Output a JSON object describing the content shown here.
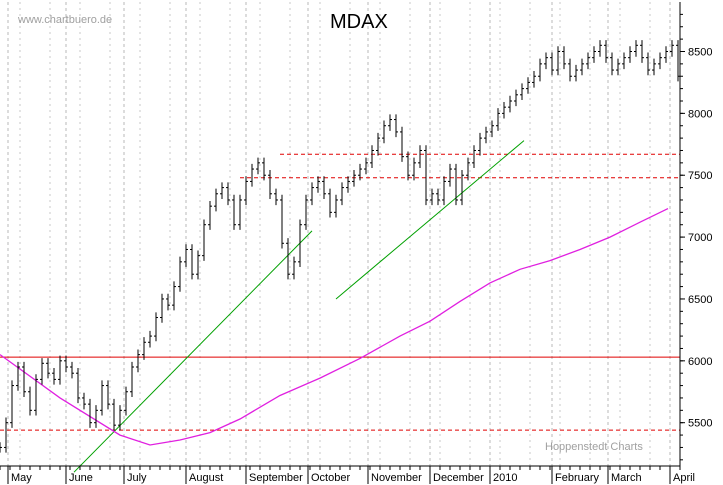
{
  "chart_data": {
    "type": "ohlc",
    "title": "MDAX",
    "watermark_top": "www.chartbuero.de",
    "watermark_bottom": "Hoppenstedt Charts",
    "y_axis_position": "right",
    "ylim": [
      5150,
      8900
    ],
    "y_ticks": [
      5500,
      6000,
      6500,
      7000,
      7500,
      8000,
      8500
    ],
    "grid": "vertical dashed",
    "months": [
      "May",
      "June",
      "July",
      "August",
      "September",
      "October",
      "November",
      "December",
      "2010",
      "February",
      "March",
      "April"
    ],
    "x_range_days": [
      0,
      340
    ],
    "month_start_day": [
      4,
      33,
      62,
      93,
      123,
      154,
      184,
      215,
      245,
      276,
      304,
      335
    ],
    "price_series": {
      "day": [
        0,
        3,
        6,
        9,
        12,
        15,
        18,
        21,
        24,
        27,
        30,
        33,
        36,
        39,
        42,
        45,
        48,
        51,
        54,
        57,
        60,
        63,
        66,
        69,
        72,
        75,
        78,
        81,
        84,
        87,
        90,
        93,
        96,
        99,
        102,
        105,
        108,
        111,
        114,
        117,
        120,
        123,
        126,
        129,
        132,
        135,
        138,
        141,
        144,
        147,
        150,
        153,
        156,
        159,
        162,
        165,
        168,
        171,
        174,
        177,
        180,
        183,
        186,
        189,
        192,
        195,
        198,
        201,
        204,
        207,
        210,
        213,
        216,
        219,
        222,
        225,
        228,
        231,
        234,
        237,
        240,
        243,
        246,
        249,
        252,
        255,
        258,
        261,
        264,
        267,
        270,
        273,
        276,
        279,
        282,
        285,
        288,
        291,
        294,
        297,
        300,
        303,
        306,
        309,
        312,
        315,
        318,
        321,
        324,
        327,
        330,
        333,
        336,
        339
      ],
      "close": [
        5300,
        5500,
        5800,
        5950,
        5750,
        5600,
        5850,
        5980,
        5900,
        5850,
        6000,
        5950,
        5900,
        5700,
        5650,
        5500,
        5600,
        5800,
        5650,
        5480,
        5600,
        5750,
        5950,
        6050,
        6150,
        6200,
        6350,
        6500,
        6450,
        6600,
        6800,
        6900,
        6700,
        6850,
        7100,
        7250,
        7350,
        7400,
        7300,
        7100,
        7300,
        7450,
        7550,
        7600,
        7500,
        7350,
        7300,
        6950,
        6700,
        6800,
        7100,
        7300,
        7400,
        7450,
        7350,
        7200,
        7300,
        7400,
        7450,
        7500,
        7550,
        7600,
        7700,
        7800,
        7900,
        7950,
        7850,
        7650,
        7500,
        7600,
        7700,
        7300,
        7350,
        7300,
        7450,
        7550,
        7300,
        7500,
        7600,
        7700,
        7800,
        7850,
        7900,
        8000,
        8050,
        8100,
        8150,
        8200,
        8250,
        8300,
        8400,
        8450,
        8350,
        8500,
        8400,
        8300,
        8350,
        8400,
        8450,
        8500,
        8550,
        8450,
        8350,
        8400,
        8450,
        8500,
        8550,
        8450,
        8350,
        8400,
        8450,
        8500,
        8550,
        8300
      ],
      "range": 70
    },
    "moving_average": {
      "color": "#e020e0",
      "day": [
        0,
        30,
        60,
        75,
        90,
        105,
        120,
        140,
        160,
        180,
        200,
        215,
        230,
        245,
        260,
        275,
        290,
        305,
        320,
        334
      ],
      "value": [
        6050,
        5700,
        5400,
        5320,
        5360,
        5420,
        5530,
        5720,
        5860,
        6020,
        6200,
        6320,
        6480,
        6630,
        6740,
        6810,
        6900,
        7000,
        7120,
        7230
      ]
    },
    "horizontal_lines": [
      {
        "value": 6030,
        "style": "solid",
        "color": "#e00000",
        "from_day": 0,
        "to_day": 340
      },
      {
        "value": 5440,
        "style": "dashed",
        "color": "#e00000",
        "from_day": 0,
        "to_day": 340
      },
      {
        "value": 7480,
        "style": "dashed",
        "color": "#e00000",
        "from_day": 120,
        "to_day": 340
      },
      {
        "value": 7670,
        "style": "dashed",
        "color": "#e00000",
        "from_day": 140,
        "to_day": 340
      }
    ],
    "trend_lines": [
      {
        "color": "#00a000",
        "from": [
          37,
          5100
        ],
        "to": [
          156,
          7050
        ]
      },
      {
        "color": "#00a000",
        "from": [
          168,
          6500
        ],
        "to": [
          262,
          7780
        ]
      }
    ]
  }
}
